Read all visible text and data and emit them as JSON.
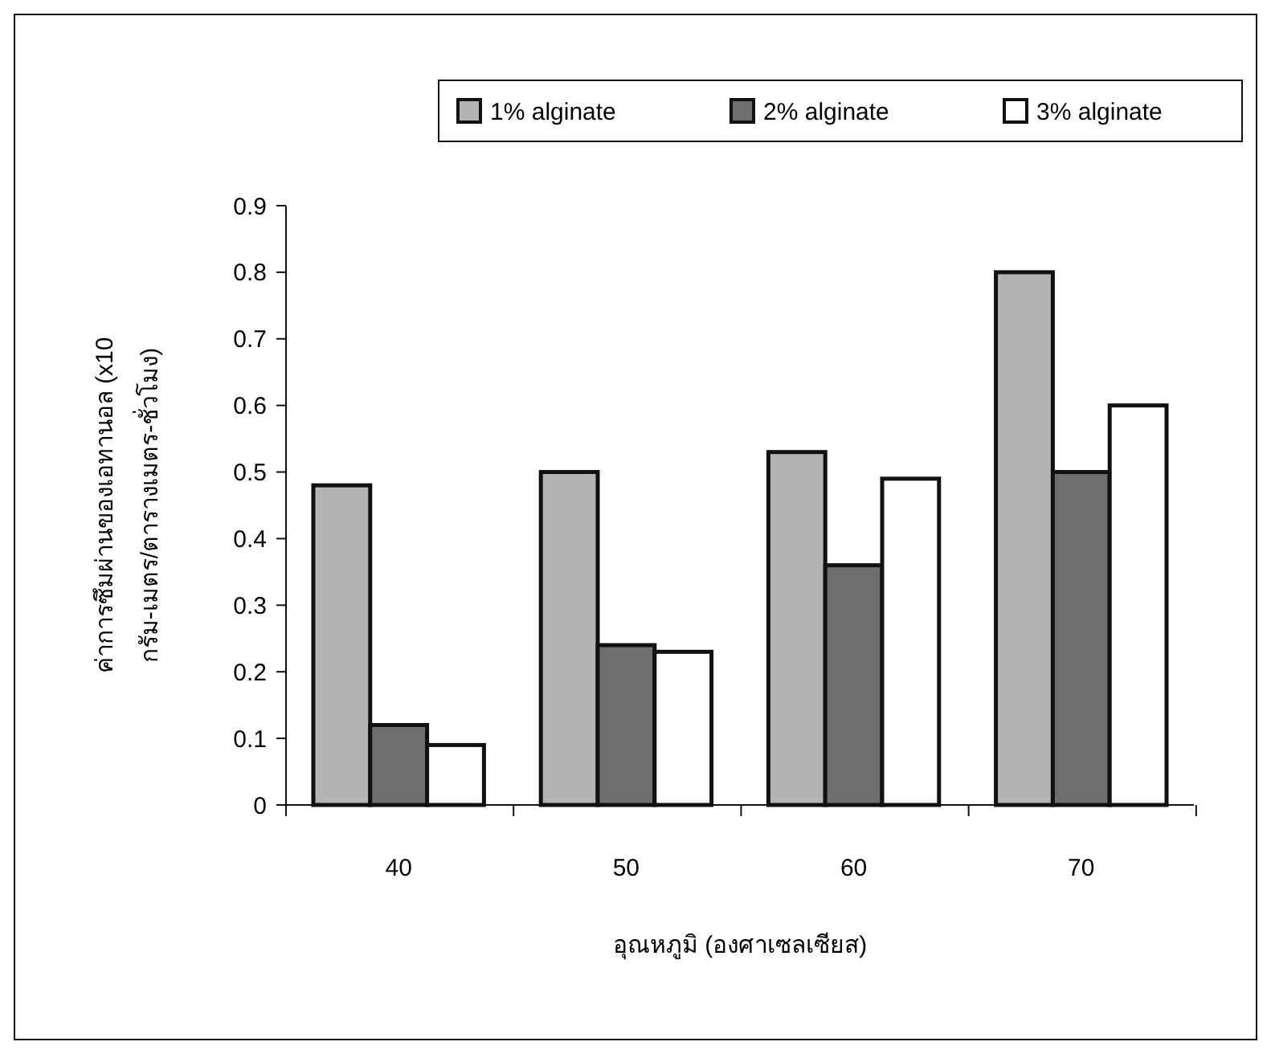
{
  "chart_data": {
    "type": "bar",
    "xlabel": "อุณหภูมิ (องศาเซลเซียส)",
    "ylabel": "ค่าการซึมผ่านของเอทานอล (x10\nกรัม-เมตร/ตารางเมตร-ชั่วโมง)",
    "categories": [
      "40",
      "50",
      "60",
      "70"
    ],
    "series": [
      {
        "name": "1% alginate",
        "color": "#b4b4b4",
        "values": [
          0.48,
          0.5,
          0.53,
          0.8
        ]
      },
      {
        "name": "2% alginate",
        "color": "#6e6e6e",
        "values": [
          0.12,
          0.24,
          0.36,
          0.5
        ]
      },
      {
        "name": "3% alginate",
        "color": "#ffffff",
        "values": [
          0.09,
          0.23,
          0.49,
          0.6
        ]
      }
    ],
    "ylim": [
      0,
      0.9
    ],
    "yticks": [
      0,
      0.1,
      0.2,
      0.3,
      0.4,
      0.5,
      0.6,
      0.7,
      0.8,
      0.9
    ],
    "grid": false,
    "legend": "top right"
  }
}
